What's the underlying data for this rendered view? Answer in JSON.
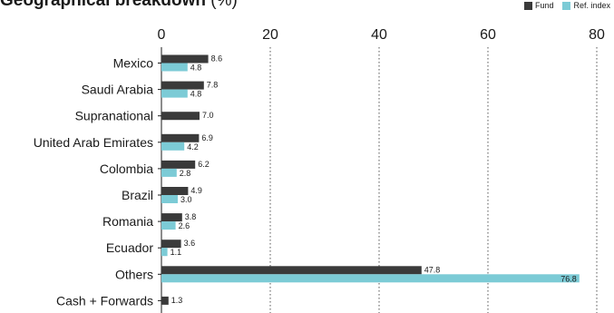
{
  "title": {
    "bold": "Geographical breakdown",
    "light": "(%)"
  },
  "chart_data": {
    "type": "bar",
    "orientation": "horizontal",
    "title": "Geographical breakdown (%)",
    "categories": [
      "Mexico",
      "Saudi Arabia",
      "Supranational",
      "United Arab Emirates",
      "Colombia",
      "Brazil",
      "Romania",
      "Ecuador",
      "Others",
      "Cash + Forwards"
    ],
    "series": [
      {
        "name": "Fund",
        "color": "#3a3a3a",
        "values": [
          8.6,
          7.8,
          7.0,
          6.9,
          6.2,
          4.9,
          3.8,
          3.6,
          47.8,
          1.3
        ]
      },
      {
        "name": "Ref. index",
        "color": "#7ccbd6",
        "values": [
          4.8,
          4.8,
          null,
          4.2,
          2.8,
          3.0,
          2.6,
          1.1,
          76.8,
          null
        ]
      }
    ],
    "xlim": [
      0,
      80
    ],
    "xticks": [
      0,
      20,
      40,
      60,
      80
    ],
    "grid": "vertical-dotted",
    "legend": "top-right"
  }
}
